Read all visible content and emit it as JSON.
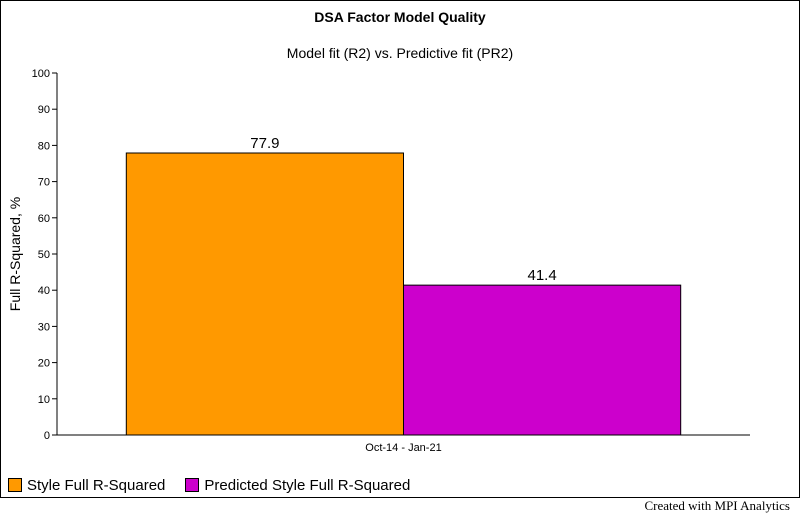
{
  "chart_data": {
    "type": "bar",
    "title": "DSA Factor Model Quality",
    "subtitle": "Model fit (R2) vs. Predictive fit (PR2)",
    "ylabel": "Full R-Squared, %",
    "categories": [
      "Oct-14 - Jan-21"
    ],
    "series": [
      {
        "name": "Style Full R-Squared",
        "values": [
          77.9
        ],
        "value_labels": [
          "77.9"
        ],
        "color": "#ff9900"
      },
      {
        "name": "Predicted Style Full R-Squared",
        "values": [
          41.4
        ],
        "value_labels": [
          "41.4"
        ],
        "color": "#cc00cc"
      }
    ],
    "ylim": [
      0,
      100
    ],
    "yticks": [
      "0",
      "10",
      "20",
      "30",
      "40",
      "50",
      "60",
      "70",
      "80",
      "90",
      "100"
    ],
    "grid": false,
    "legend_position": "bottom-left"
  },
  "footer": "Created with MPI Analytics"
}
